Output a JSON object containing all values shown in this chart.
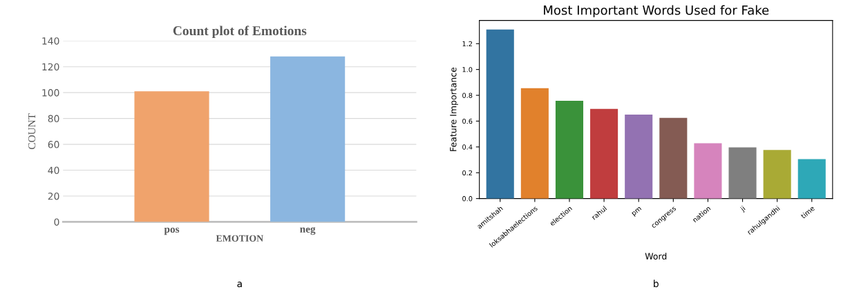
{
  "chart_data": [
    {
      "type": "bar",
      "title": "Count plot of Emotions",
      "xlabel": "EMOTION",
      "ylabel": "COUNT",
      "categories": [
        "pos",
        "neg"
      ],
      "values": [
        101,
        128
      ],
      "colors": [
        "#f0a36c",
        "#8bb6e0"
      ],
      "ylim": [
        0,
        140
      ],
      "yticks": [
        0,
        20,
        40,
        60,
        80,
        100,
        120,
        140
      ],
      "grid": "y",
      "annotations": [
        "a"
      ]
    },
    {
      "type": "bar",
      "title": "Most Important Words Used for Fake",
      "xlabel": "Word",
      "ylabel": "Feature Importance",
      "categories": [
        "amitshah",
        "loksabhaelections",
        "election",
        "rahul",
        "pm",
        "congress",
        "nation",
        "ji",
        "rahulgandhi",
        "time"
      ],
      "values": [
        1.31,
        0.855,
        0.757,
        0.695,
        0.65,
        0.625,
        0.428,
        0.397,
        0.377,
        0.305
      ],
      "colors": [
        "#3274a1",
        "#e1812c",
        "#3a923a",
        "#c03d3e",
        "#9372b2",
        "#845b53",
        "#d684bd",
        "#7f7f7f",
        "#a9aa35",
        "#2ea8b7"
      ],
      "ylim": [
        0,
        1.38
      ],
      "yticks": [
        {
          "value": 0,
          "label": "0.0"
        },
        0.2,
        0.4,
        0.6,
        0.8,
        {
          "value": 1,
          "label": "1.0"
        },
        1.2
      ],
      "annotations": [
        "b"
      ]
    }
  ]
}
